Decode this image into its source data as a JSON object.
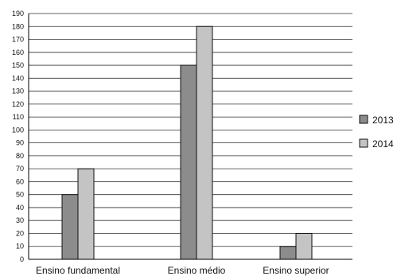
{
  "chart_data": {
    "type": "bar",
    "categories": [
      "Ensino fundamental",
      "Ensino médio",
      "Ensino superior"
    ],
    "series": [
      {
        "name": "2013",
        "values": [
          50,
          150,
          10
        ],
        "color": "#8c8c8c"
      },
      {
        "name": "2014",
        "values": [
          70,
          180,
          20
        ],
        "color": "#c4c4c4"
      }
    ],
    "ylim": [
      0,
      190
    ],
    "ytick_step": 10,
    "grid": true,
    "legend_position": "right"
  }
}
